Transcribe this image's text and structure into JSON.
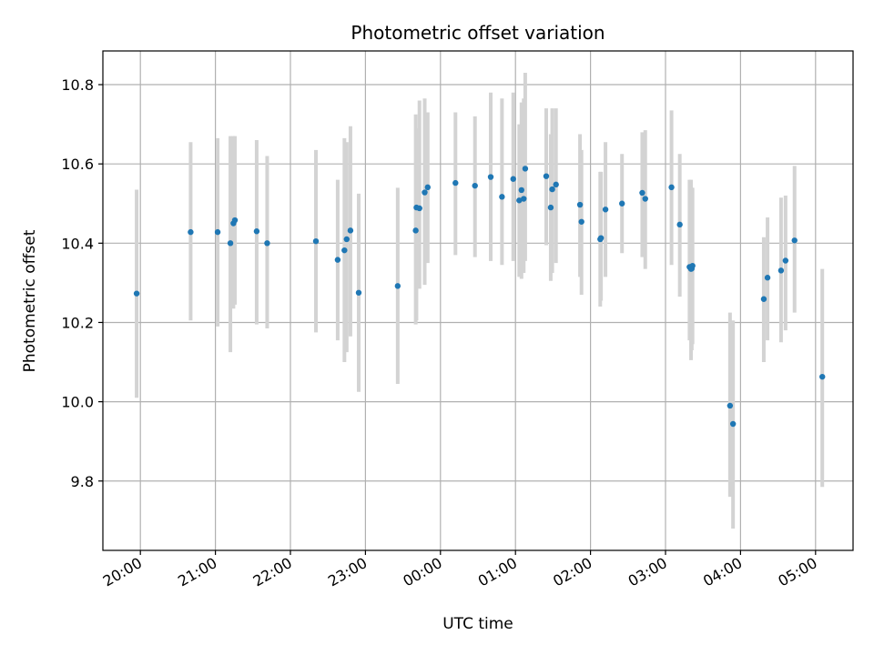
{
  "chart_data": {
    "type": "scatter",
    "title": "Photometric offset variation",
    "xlabel": "UTC time",
    "ylabel": "Photometric offset",
    "grid": true,
    "x_ticks": [
      "20:00",
      "21:00",
      "22:00",
      "23:00",
      "00:00",
      "01:00",
      "02:00",
      "03:00",
      "04:00",
      "05:00"
    ],
    "x_tick_hours": [
      0,
      1,
      2,
      3,
      4,
      5,
      6,
      7,
      8,
      9
    ],
    "x_origin": "20:00",
    "xlim_hours": [
      -0.5,
      9.5
    ],
    "y_ticks": [
      "9.8",
      "10.0",
      "10.2",
      "10.4",
      "10.6",
      "10.8"
    ],
    "y_tick_values": [
      9.8,
      10.0,
      10.2,
      10.4,
      10.6,
      10.8
    ],
    "ylim": [
      9.625,
      10.885
    ],
    "colors": {
      "point": "#1f77b4",
      "errorbar": "#d3d3d3",
      "grid": "#b0b0b0",
      "axes": "#000000"
    },
    "series": [
      {
        "x": [
          -0.05,
          0.67,
          1.03,
          1.2,
          1.24,
          1.26,
          1.55,
          1.69,
          2.34,
          2.63,
          2.72,
          2.75,
          2.8,
          2.91,
          3.43,
          3.67,
          3.68,
          3.72,
          3.79,
          3.83,
          4.2,
          4.46,
          4.67,
          4.82,
          4.97,
          5.05,
          5.08,
          5.11,
          5.13,
          5.41,
          5.47,
          5.49,
          5.54,
          5.86,
          5.88,
          6.13,
          6.14,
          6.2,
          6.42,
          6.69,
          6.73,
          7.08,
          7.19,
          7.32,
          7.34,
          7.35,
          7.36,
          7.86,
          7.9,
          8.31,
          8.36,
          8.54,
          8.6,
          8.72,
          9.09
        ],
        "y": [
          10.273,
          10.428,
          10.428,
          10.4,
          10.45,
          10.458,
          10.43,
          10.4,
          10.405,
          10.358,
          10.382,
          10.41,
          10.432,
          10.275,
          10.292,
          10.432,
          10.49,
          10.488,
          10.528,
          10.541,
          10.552,
          10.545,
          10.567,
          10.517,
          10.562,
          10.508,
          10.534,
          10.512,
          10.588,
          10.569,
          10.49,
          10.536,
          10.548,
          10.497,
          10.454,
          10.41,
          10.413,
          10.485,
          10.5,
          10.527,
          10.512,
          10.541,
          10.447,
          10.34,
          10.335,
          10.336,
          10.343,
          9.99,
          9.944,
          10.259,
          10.313,
          10.331,
          10.356,
          10.407,
          10.063
        ],
        "yerr_low": [
          10.01,
          10.205,
          10.19,
          10.125,
          10.235,
          10.245,
          10.195,
          10.185,
          10.175,
          10.155,
          10.1,
          10.125,
          10.165,
          10.025,
          10.045,
          10.195,
          10.205,
          10.285,
          10.295,
          10.35,
          10.37,
          10.365,
          10.355,
          10.345,
          10.355,
          10.315,
          10.31,
          10.325,
          10.355,
          10.395,
          10.305,
          10.325,
          10.35,
          10.315,
          10.27,
          10.24,
          10.255,
          10.315,
          10.375,
          10.365,
          10.335,
          10.345,
          10.265,
          10.155,
          10.105,
          10.13,
          10.145,
          9.76,
          9.68,
          10.1,
          10.155,
          10.15,
          10.18,
          10.225,
          9.785
        ],
        "yerr_high": [
          10.535,
          10.655,
          10.665,
          10.67,
          10.67,
          10.67,
          10.66,
          10.62,
          10.635,
          10.56,
          10.665,
          10.655,
          10.695,
          10.525,
          10.54,
          10.725,
          10.69,
          10.76,
          10.765,
          10.73,
          10.73,
          10.72,
          10.78,
          10.765,
          10.78,
          10.7,
          10.755,
          10.765,
          10.83,
          10.74,
          10.675,
          10.74,
          10.74,
          10.675,
          10.635,
          10.58,
          10.58,
          10.655,
          10.625,
          10.68,
          10.685,
          10.735,
          10.625,
          10.56,
          10.56,
          10.54,
          10.54,
          10.225,
          10.205,
          10.415,
          10.465,
          10.515,
          10.52,
          10.595,
          10.335
        ]
      }
    ]
  }
}
